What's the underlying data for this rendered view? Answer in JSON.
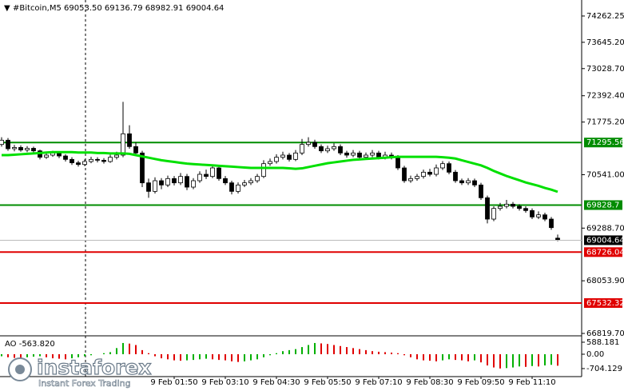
{
  "chart_data": {
    "type": "candlestick",
    "title": "#Bitcoin,M5  69053.50 69136.79 68982.91 69004.64",
    "categories": [
      null,
      null,
      null,
      null,
      null,
      null,
      null,
      null,
      null,
      null,
      null,
      null,
      null,
      null,
      null,
      null,
      null,
      null,
      null,
      null,
      null,
      null,
      null,
      null,
      null,
      null,
      null,
      "9 Feb 01:50",
      null,
      null,
      null,
      null,
      null,
      null,
      null,
      "9 Feb 03:10",
      null,
      null,
      null,
      null,
      null,
      null,
      null,
      "9 Feb 04:30",
      null,
      null,
      null,
      null,
      null,
      null,
      null,
      "9 Feb 05:50",
      null,
      null,
      null,
      null,
      null,
      null,
      null,
      "9 Feb 07:10",
      null,
      null,
      null,
      null,
      null,
      null,
      null,
      "9 Feb 08:30",
      null,
      null,
      null,
      null,
      null,
      null,
      null,
      "9 Feb 09:50",
      null,
      null,
      null,
      null,
      null,
      null,
      null,
      "9 Feb 11:10",
      null,
      null,
      null,
      null
    ],
    "open": [
      71250,
      71350,
      71150,
      71180,
      71120,
      71160,
      71100,
      70950,
      71000,
      71050,
      70980,
      70900,
      70820,
      70780,
      70850,
      70900,
      70880,
      70850,
      70950,
      71000,
      71500,
      71200,
      71050,
      70350,
      70150,
      70400,
      70300,
      70450,
      70350,
      70500,
      70250,
      70400,
      70550,
      70500,
      70700,
      70450,
      70350,
      70150,
      70300,
      70350,
      70400,
      70500,
      70800,
      70850,
      70950,
      71000,
      70900,
      71050,
      71250,
      71300,
      71200,
      71100,
      71150,
      71200,
      71050,
      71000,
      71050,
      70950,
      71000,
      71050,
      70950,
      71000,
      70950,
      70700,
      70400,
      70450,
      70500,
      70600,
      70550,
      70700,
      70800,
      70600,
      70400,
      70350,
      70400,
      70300,
      70000,
      69500,
      69750,
      69800,
      69850,
      69800,
      69750,
      69700,
      69550,
      69600,
      69500,
      69053.5
    ],
    "high": [
      71420,
      71400,
      71240,
      71230,
      71210,
      71200,
      71130,
      71060,
      71100,
      71090,
      71020,
      70950,
      70870,
      70900,
      70960,
      70950,
      70930,
      71010,
      71080,
      72250,
      71700,
      71300,
      71100,
      70450,
      70480,
      70460,
      70520,
      70510,
      70580,
      70560,
      70460,
      70620,
      70660,
      70780,
      70750,
      70510,
      70400,
      70360,
      70420,
      70460,
      70560,
      70880,
      70920,
      71020,
      71080,
      71050,
      71120,
      71380,
      71420,
      71360,
      71250,
      71220,
      71280,
      71250,
      71100,
      71120,
      71100,
      71060,
      71120,
      71100,
      71080,
      71060,
      71000,
      70750,
      70520,
      70560,
      70660,
      70680,
      70780,
      70860,
      70850,
      70650,
      70450,
      70460,
      70450,
      70350,
      70050,
      69800,
      69880,
      69950,
      69900,
      69850,
      69800,
      69750,
      69680,
      69650,
      69550,
      69136.79
    ],
    "low": [
      71200,
      71100,
      71090,
      71080,
      71070,
      71050,
      70900,
      70910,
      70960,
      70930,
      70850,
      70770,
      70730,
      70740,
      70810,
      70830,
      70800,
      70820,
      70900,
      70950,
      71150,
      71000,
      70250,
      70000,
      70100,
      70200,
      70250,
      70290,
      70300,
      70180,
      70200,
      70350,
      70440,
      70460,
      70400,
      70300,
      70080,
      70100,
      70250,
      70300,
      70350,
      70460,
      70750,
      70800,
      70900,
      70850,
      70860,
      71000,
      71200,
      71150,
      71050,
      71050,
      71100,
      71000,
      70940,
      70950,
      70900,
      70900,
      70950,
      70900,
      70900,
      70900,
      70650,
      70350,
      70350,
      70400,
      70450,
      70500,
      70500,
      70650,
      70550,
      70350,
      70300,
      70300,
      70250,
      69950,
      69400,
      69450,
      69700,
      69750,
      69750,
      69700,
      69650,
      69500,
      69500,
      69450,
      69250,
      68982.91
    ],
    "close": [
      71350,
      71150,
      71180,
      71120,
      71160,
      71100,
      70950,
      71000,
      71050,
      70980,
      70900,
      70820,
      70780,
      70850,
      70900,
      70880,
      70850,
      70950,
      71000,
      71500,
      71200,
      71050,
      70350,
      70150,
      70400,
      70300,
      70450,
      70350,
      70500,
      70250,
      70400,
      70550,
      70500,
      70700,
      70450,
      70350,
      70150,
      70300,
      70350,
      70400,
      70500,
      70800,
      70850,
      70950,
      71000,
      70900,
      71050,
      71250,
      71300,
      71200,
      71100,
      71150,
      71200,
      71050,
      71000,
      71050,
      70950,
      71000,
      71050,
      70950,
      71000,
      70950,
      70700,
      70400,
      70450,
      70500,
      70600,
      70550,
      70700,
      70800,
      70600,
      70400,
      70350,
      70400,
      70300,
      70000,
      69500,
      69750,
      69800,
      69850,
      69800,
      69750,
      69700,
      69550,
      69600,
      69500,
      69300,
      69004.64
    ],
    "moving_average": {
      "color": "#00e000",
      "values": [
        71000,
        71000,
        71010,
        71020,
        71030,
        71040,
        71050,
        71060,
        71070,
        71070,
        71070,
        71070,
        71060,
        71060,
        71060,
        71050,
        71050,
        71040,
        71040,
        71040,
        71030,
        71000,
        70970,
        70940,
        70910,
        70880,
        70860,
        70840,
        70820,
        70800,
        70790,
        70780,
        70770,
        70760,
        70750,
        70740,
        70730,
        70720,
        70710,
        70700,
        70700,
        70700,
        70700,
        70700,
        70700,
        70690,
        70680,
        70690,
        70720,
        70750,
        70780,
        70810,
        70830,
        70850,
        70870,
        70890,
        70900,
        70910,
        70920,
        70930,
        70940,
        70950,
        70960,
        70960,
        70960,
        70960,
        70960,
        70960,
        70960,
        70950,
        70940,
        70920,
        70880,
        70840,
        70800,
        70760,
        70700,
        70630,
        70570,
        70510,
        70460,
        70410,
        70360,
        70320,
        70280,
        70230,
        70190,
        70140
      ]
    },
    "levels": [
      {
        "value": 71295.56,
        "color": "#008c00"
      },
      {
        "value": 69828.7,
        "color": "#008c00"
      },
      {
        "value": 68726.04,
        "color": "#e00000"
      },
      {
        "value": 67532.32,
        "color": "#e00000"
      }
    ],
    "ylim": [
      66782,
      74637
    ],
    "yticks": [
      {
        "value": 74262.25,
        "label": "74262.25"
      },
      {
        "value": 73645.2,
        "label": "73645.20"
      },
      {
        "value": 73028.7,
        "label": "73028.70"
      },
      {
        "value": 72392.4,
        "label": "72392.40"
      },
      {
        "value": 71775.2,
        "label": "71775.20"
      },
      {
        "value": 70541,
        "label": "70541.00"
      },
      {
        "value": 69288.7,
        "label": "69288.70"
      },
      {
        "value": 68053.9,
        "label": "68053.90"
      },
      {
        "value": 66819.7,
        "label": "66819.70"
      }
    ],
    "ao": {
      "label": "AO -563.820",
      "up_color": "#00b000",
      "down_color": "#e00000",
      "values": [
        -100,
        -150,
        -180,
        -200,
        -150,
        -120,
        -100,
        -150,
        -200,
        -220,
        -250,
        -200,
        -150,
        -100,
        -50,
        0,
        50,
        100,
        300,
        550,
        520,
        450,
        200,
        50,
        -100,
        -200,
        -250,
        -300,
        -320,
        -300,
        -280,
        -250,
        -220,
        -250,
        -280,
        -300,
        -350,
        -380,
        -350,
        -300,
        -250,
        -150,
        -50,
        50,
        150,
        200,
        250,
        350,
        450,
        550,
        530,
        500,
        450,
        400,
        350,
        300,
        250,
        200,
        150,
        120,
        100,
        80,
        50,
        -50,
        -150,
        -250,
        -300,
        -320,
        -350,
        -300,
        -250,
        -280,
        -300,
        -350,
        -300,
        -400,
        -550,
        -650,
        -700,
        -680,
        -650,
        -600,
        -620,
        -580,
        -600,
        -550,
        -520,
        -563.82
      ],
      "ylim": [
        -1098,
        862
      ],
      "yticks": [
        588.181,
        {
          "value": 0,
          "label": "0.00"
        },
        -704.129
      ]
    }
  },
  "logo": {
    "name": "instaforex",
    "tagline": "Instant Forex Trading"
  }
}
